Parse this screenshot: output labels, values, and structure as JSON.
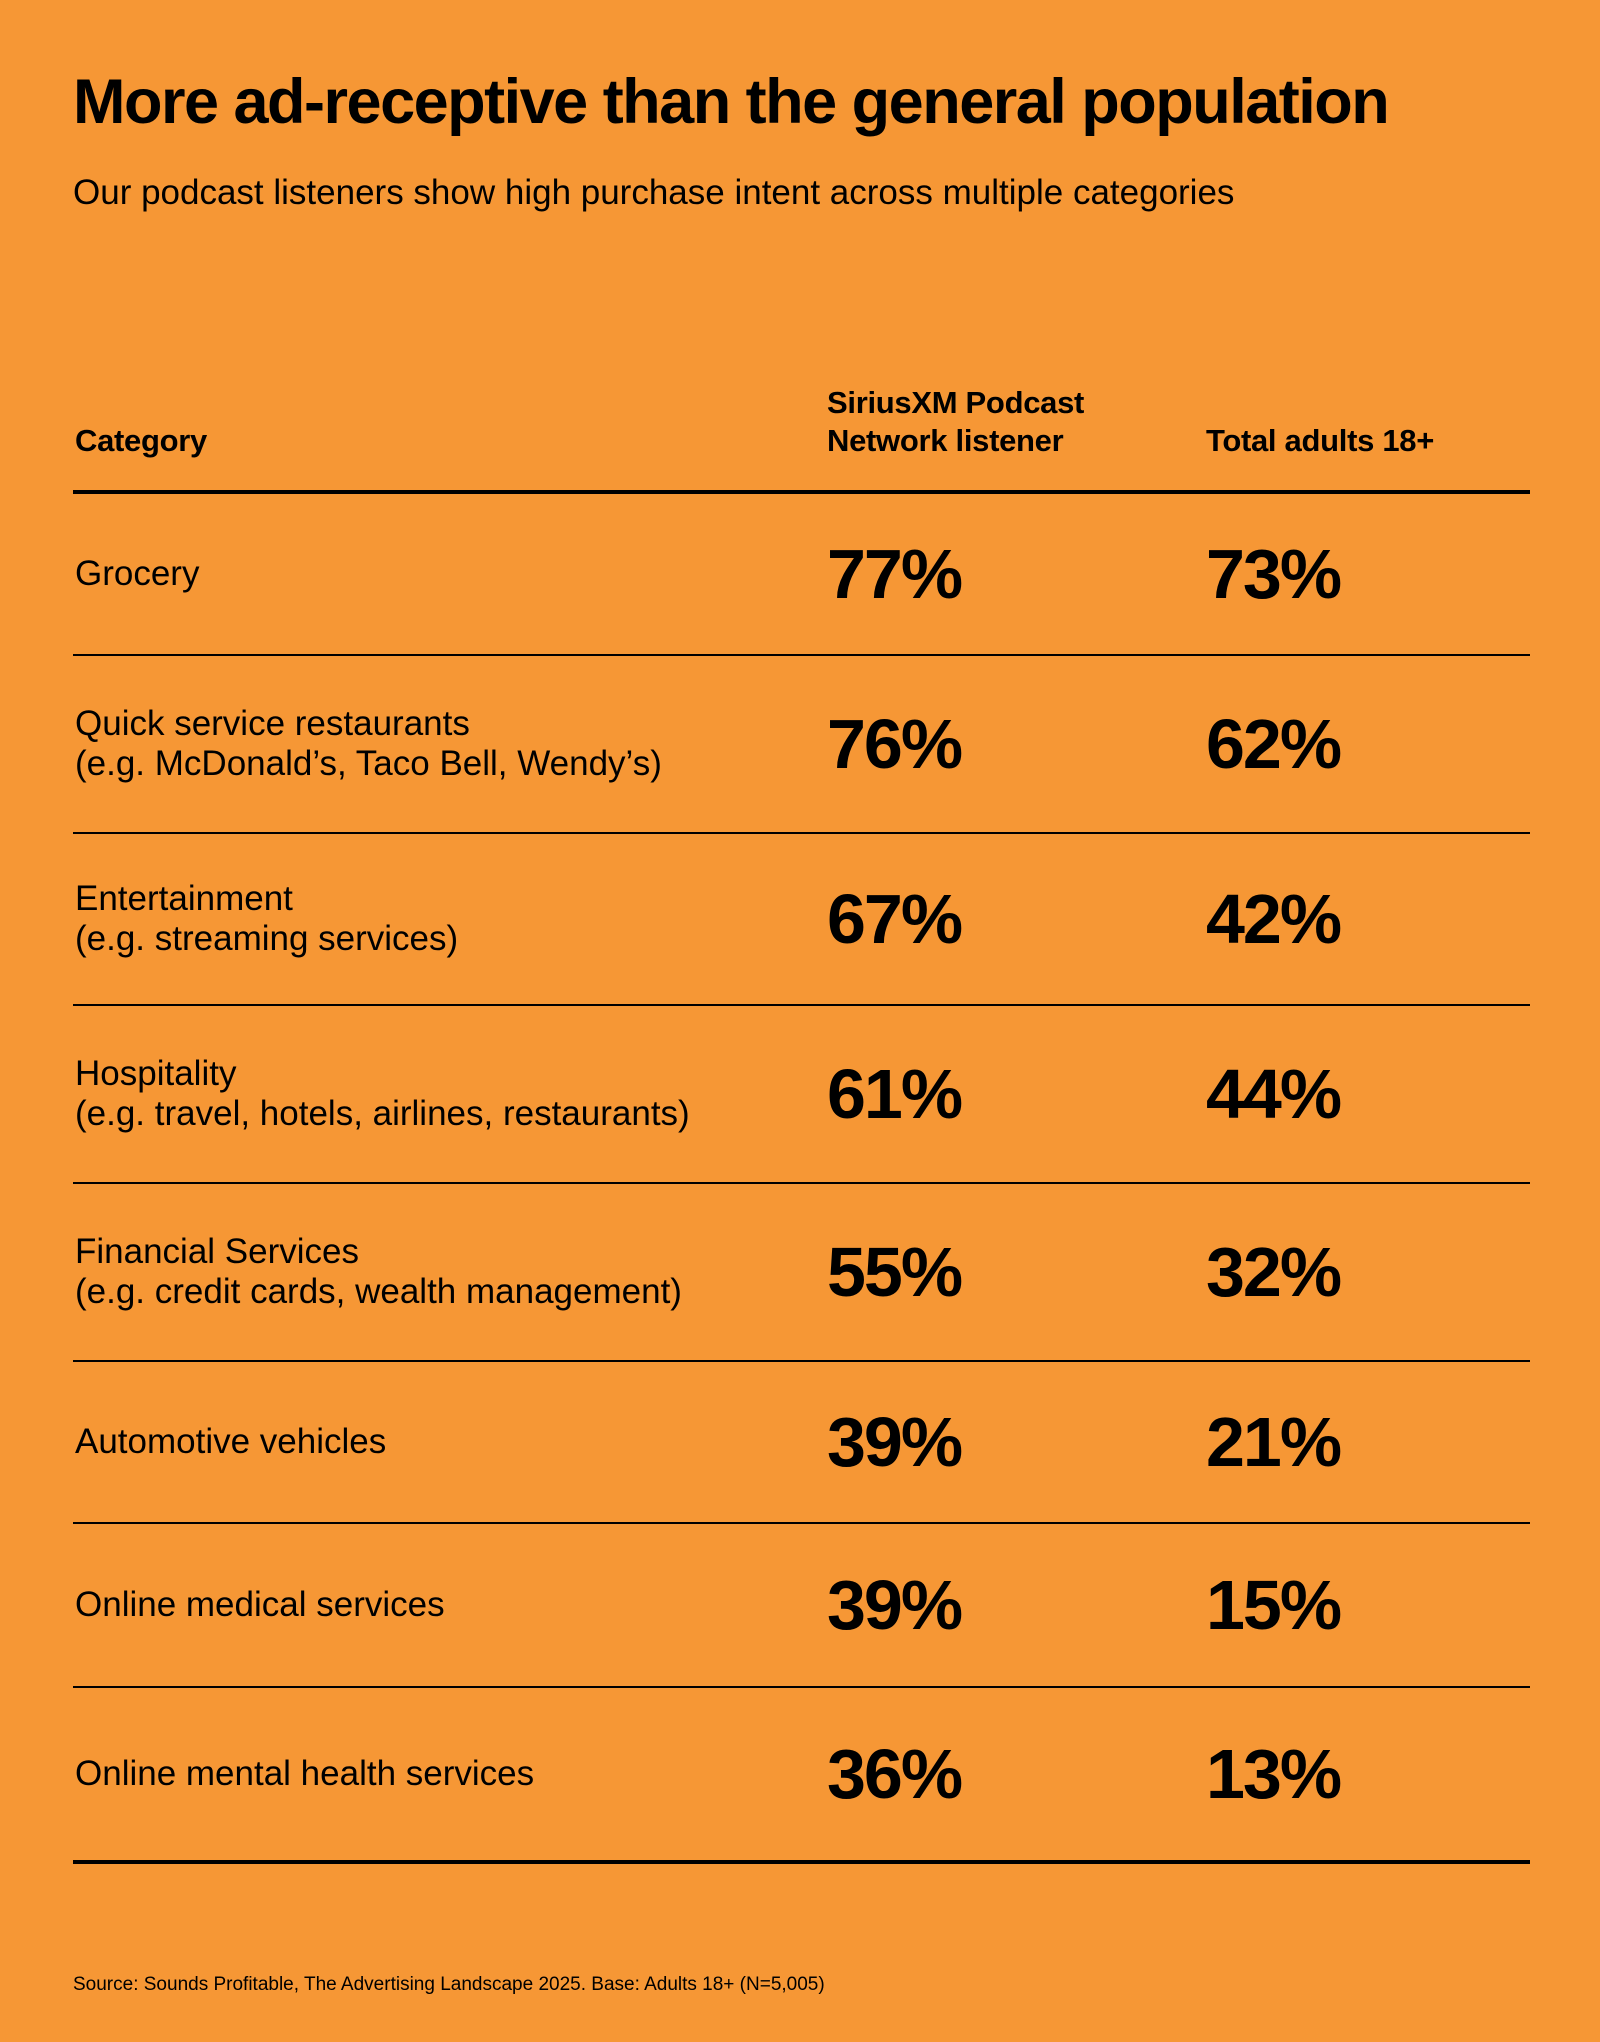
{
  "title": "More ad-receptive than the general population",
  "subtitle": "Our podcast listeners show high purchase intent across multiple categories",
  "source": "Source: Sounds Profitable, The Advertising Landscape 2025. Base: Adults 18+ (N=5,005)",
  "chart_data": {
    "type": "table",
    "columns": [
      "Category",
      "SiriusXM Podcast Network listener",
      "Total adults 18+"
    ],
    "rows": [
      {
        "category": "Grocery",
        "detail": "",
        "listener": "77%",
        "total": "73%"
      },
      {
        "category": "Quick service restaurants",
        "detail": "(e.g. McDonald’s, Taco Bell, Wendy’s)",
        "listener": "76%",
        "total": "62%"
      },
      {
        "category": "Entertainment",
        "detail": "(e.g. streaming services)",
        "listener": "67%",
        "total": "42%"
      },
      {
        "category": "Hospitality",
        "detail": "(e.g. travel, hotels, airlines, restaurants)",
        "listener": "61%",
        "total": "44%"
      },
      {
        "category": "Financial Services",
        "detail": "(e.g. credit cards, wealth management)",
        "listener": "55%",
        "total": "32%"
      },
      {
        "category": "Automotive vehicles",
        "detail": "",
        "listener": "39%",
        "total": "21%"
      },
      {
        "category": "Online medical services",
        "detail": "",
        "listener": "39%",
        "total": "15%"
      },
      {
        "category": "Online mental health services",
        "detail": "",
        "listener": "36%",
        "total": "13%"
      }
    ]
  }
}
